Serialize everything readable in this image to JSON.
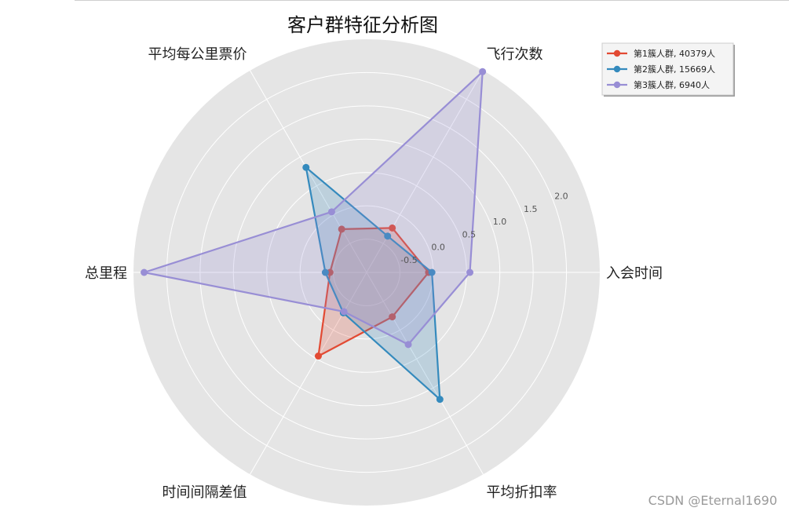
{
  "chart_data": {
    "type": "radar",
    "title": "客户群特征分析图",
    "axes": [
      "入会时间",
      "飞行次数",
      "平均每公里票价",
      "总里程",
      "时间间隔差值",
      "平均折扣率"
    ],
    "rlim": [
      -1.0,
      2.5
    ],
    "rticks": [
      -0.5,
      0.0,
      0.5,
      1.0,
      1.5,
      2.0
    ],
    "rtick_labels": [
      "-0.5",
      "0.0",
      "0.5",
      "1.0",
      "1.5",
      "2.0"
    ],
    "grid": true,
    "legend_position": "top-right",
    "series": [
      {
        "name": "第1簇人群, 40379人",
        "color": "#e24a33",
        "values": [
          -0.07,
          -0.23,
          -0.25,
          -0.45,
          0.45,
          -0.23
        ]
      },
      {
        "name": "第2簇人群, 15669人",
        "color": "#348abd",
        "values": [
          -0.02,
          -0.37,
          0.82,
          -0.38,
          -0.3,
          1.2
        ]
      },
      {
        "name": "第3簇人群, 6940人",
        "color": "#988ed5",
        "values": [
          0.55,
          2.48,
          0.05,
          2.34,
          -0.32,
          0.25
        ]
      }
    ]
  },
  "footer": {
    "watermark": "CSDN @Eternal1690"
  }
}
